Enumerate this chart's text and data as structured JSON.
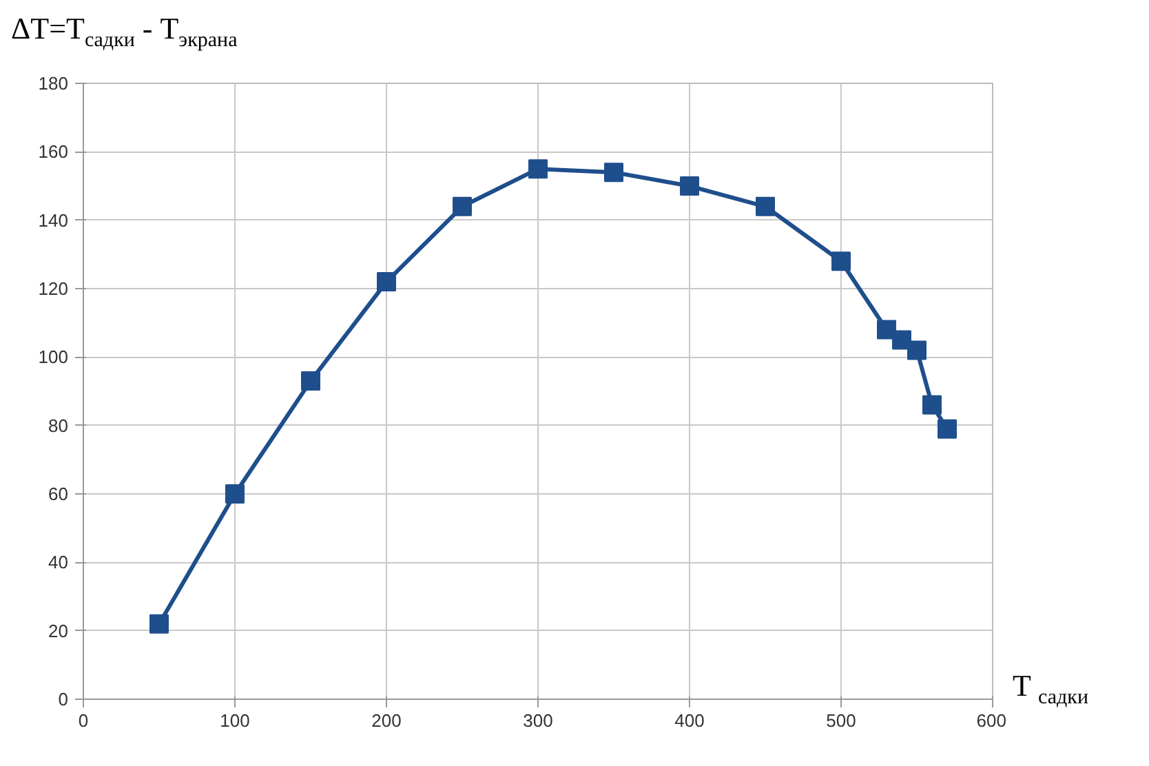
{
  "chart_data": {
    "type": "line",
    "ylabel": "ΔT=T$_{садки}$ - T$_{экрана}$",
    "xlabel": "T $_{садки}$",
    "x": [
      50,
      100,
      150,
      200,
      250,
      300,
      350,
      400,
      450,
      500,
      530,
      540,
      550,
      560,
      570
    ],
    "series": [
      {
        "color": "#1f4e8c",
        "values": [
          22,
          60,
          93,
          122,
          144,
          155,
          154,
          150,
          144,
          128,
          108,
          105,
          102,
          86,
          79
        ]
      }
    ],
    "xlim": [
      0,
      600
    ],
    "xticks": [
      0,
      100,
      200,
      300,
      400,
      500,
      600
    ],
    "ylim": [
      0,
      180
    ],
    "yticks": [
      0,
      20,
      40,
      60,
      80,
      100,
      120,
      140,
      160,
      180
    ],
    "grid": true,
    "marker": "square",
    "line_style": "solid"
  }
}
